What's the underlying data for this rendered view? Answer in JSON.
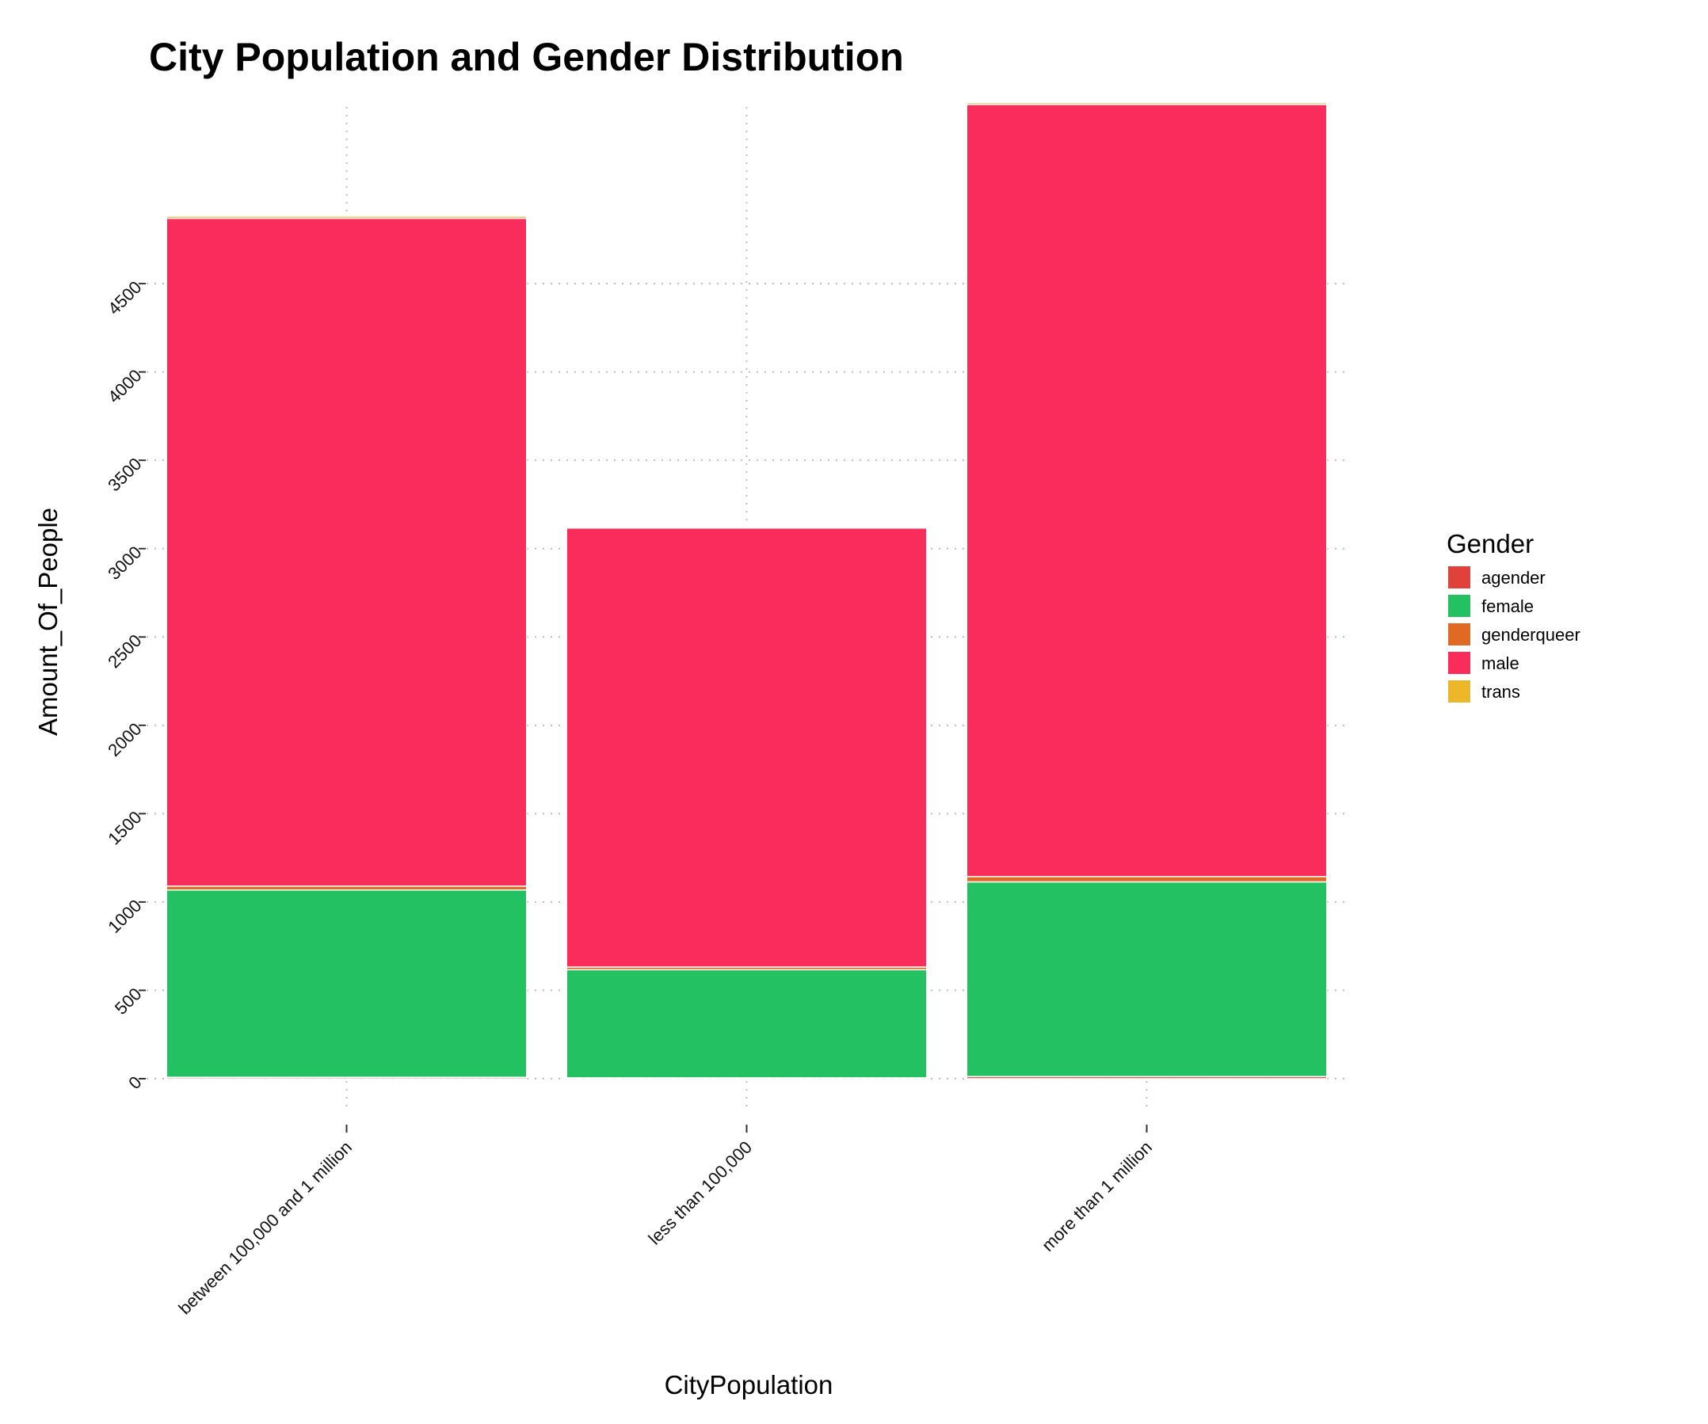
{
  "chart_data": {
    "type": "bar",
    "stacked": true,
    "title": "City Population and Gender Distribution",
    "xlabel": "CityPopulation",
    "ylabel": "Amount_Of_People",
    "categories": [
      "between 100,000 and 1 million",
      "less than 100,000",
      "more than 1 million"
    ],
    "yticks": [
      0,
      500,
      1000,
      1500,
      2000,
      2500,
      3000,
      3500,
      4000,
      4500
    ],
    "ylim": [
      0,
      5500
    ],
    "grid": true,
    "legend": {
      "title": "Gender",
      "placement": "right",
      "entries": [
        "agender",
        "female",
        "genderqueer",
        "male",
        "trans"
      ]
    },
    "series": [
      {
        "name": "agender",
        "color": "#e0413a",
        "values": [
          8,
          5,
          12
        ]
      },
      {
        "name": "female",
        "color": "#23c162",
        "values": [
          1060,
          612,
          1102
        ]
      },
      {
        "name": "genderqueer",
        "color": "#e06a23",
        "values": [
          22,
          15,
          30
        ]
      },
      {
        "name": "male",
        "color": "#fa2c5c",
        "values": [
          3780,
          2485,
          4370
        ]
      },
      {
        "name": "trans",
        "color": "#edb72a",
        "values": [
          12,
          6,
          10
        ]
      }
    ]
  }
}
